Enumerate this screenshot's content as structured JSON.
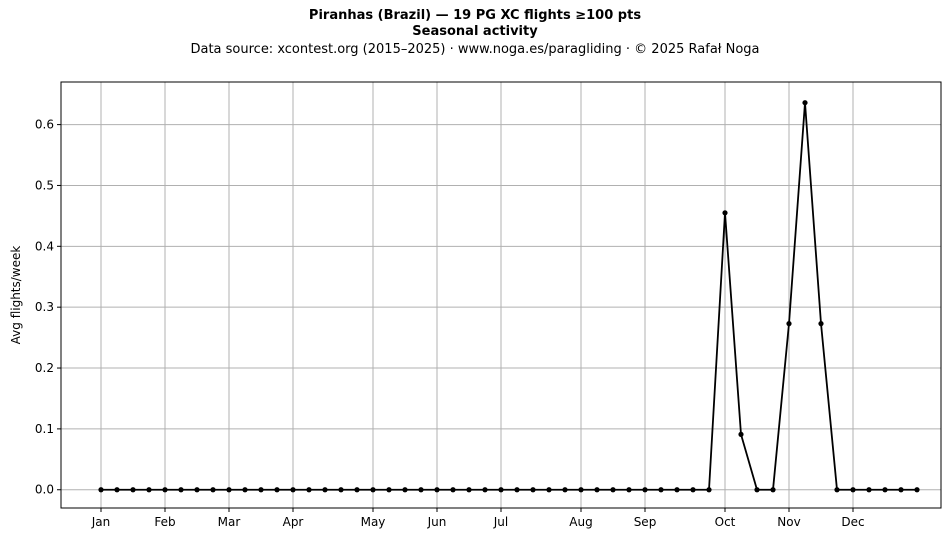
{
  "chart_data": {
    "type": "line",
    "title": "Piranhas (Brazil)  —  19 PG XC flights ≥100 pts",
    "subtitle": "Seasonal activity",
    "source_line": "Data source: xcontest.org (2015–2025)  ·  www.noga.es/paragliding  ·  © 2025 Rafał Noga",
    "xlabel": "",
    "ylabel": "Avg flights/week",
    "ylim": [
      -0.03,
      0.67
    ],
    "yticks": [
      0.0,
      0.1,
      0.2,
      0.3,
      0.4,
      0.5,
      0.6
    ],
    "ytick_labels": [
      "0.0",
      "0.1",
      "0.2",
      "0.3",
      "0.4",
      "0.5",
      "0.6"
    ],
    "x_unit": "week of year",
    "xlim": [
      -1.5,
      53.5
    ],
    "xticks": [
      1,
      5,
      9,
      13,
      18,
      22,
      26,
      31,
      35,
      40,
      44,
      48
    ],
    "xtick_labels": [
      "Jan",
      "Feb",
      "Mar",
      "Apr",
      "May",
      "Jun",
      "Jul",
      "Aug",
      "Sep",
      "Oct",
      "Nov",
      "Dec"
    ],
    "grid": true,
    "line_color": "#000000",
    "series": [
      {
        "x": [
          1,
          2,
          3,
          4,
          5,
          6,
          7,
          8,
          9,
          10,
          11,
          12,
          13,
          14,
          15,
          16,
          17,
          18,
          19,
          20,
          21,
          22,
          23,
          24,
          25,
          26,
          27,
          28,
          29,
          30,
          31,
          32,
          33,
          34,
          35,
          36,
          37,
          38,
          39,
          40,
          41,
          42,
          43,
          44,
          45,
          46,
          47,
          48,
          49,
          50,
          51,
          52
        ],
        "values": [
          0,
          0,
          0,
          0,
          0,
          0,
          0,
          0,
          0,
          0,
          0,
          0,
          0,
          0,
          0,
          0,
          0,
          0,
          0,
          0,
          0,
          0,
          0,
          0,
          0,
          0,
          0,
          0,
          0,
          0,
          0,
          0,
          0,
          0,
          0,
          0,
          0,
          0,
          0,
          0.455,
          0.091,
          0,
          0,
          0.273,
          0.636,
          0.273,
          0,
          0,
          0,
          0,
          0,
          0
        ]
      }
    ]
  }
}
